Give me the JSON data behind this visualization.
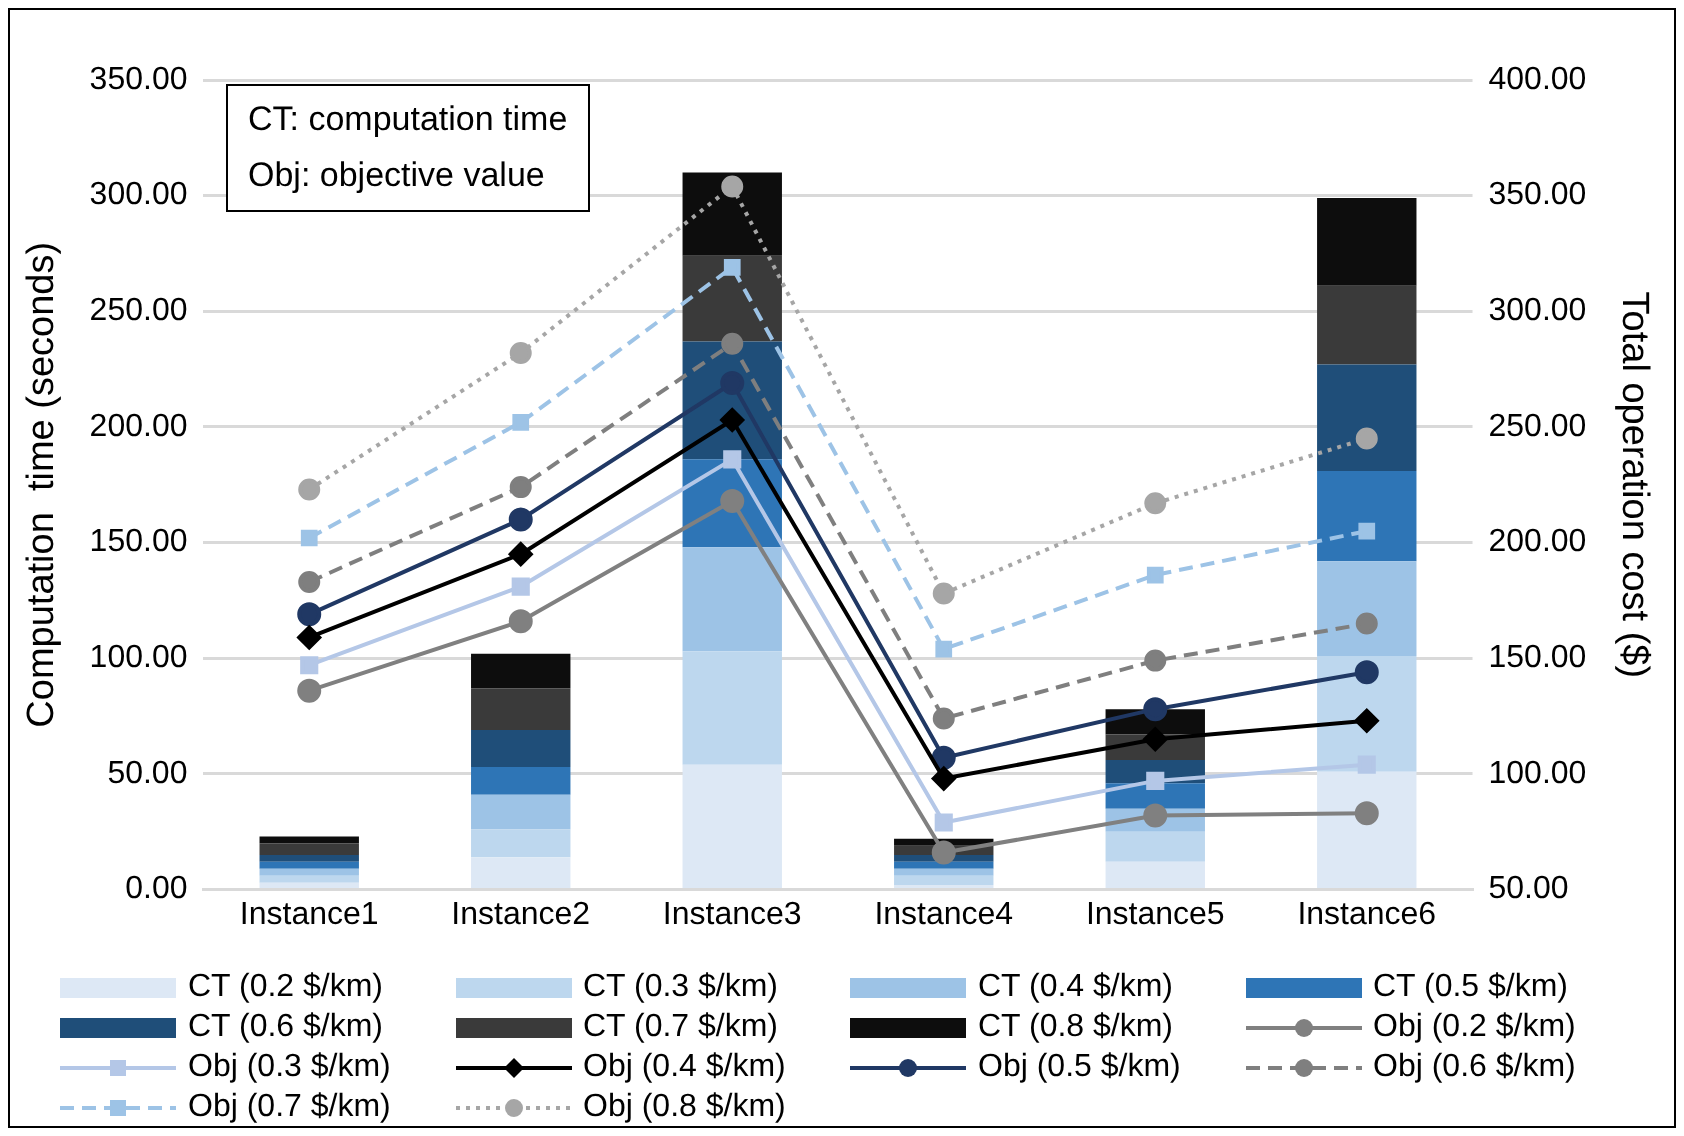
{
  "chart_data": {
    "type": "bar",
    "stacked": true,
    "categories": [
      "Instance1",
      "Instance2",
      "Instance3",
      "Instance4",
      "Instance5",
      "Instance6"
    ],
    "ylabel": "Computation  time (seconds)",
    "y2label": "Total operation cost ($)",
    "ylim": [
      0,
      350
    ],
    "yticks": [
      {
        "value": 0,
        "label": "0.00"
      },
      {
        "value": 50,
        "label": "50.00"
      },
      {
        "value": 100,
        "label": "100.00"
      },
      {
        "value": 150,
        "label": "150.00"
      },
      {
        "value": 200,
        "label": "200.00"
      },
      {
        "value": 250,
        "label": "250.00"
      },
      {
        "value": 300,
        "label": "300.00"
      },
      {
        "value": 350,
        "label": "350.00"
      }
    ],
    "y2lim": [
      50,
      400
    ],
    "y2ticks": [
      {
        "value": 50,
        "label": "50.00"
      },
      {
        "value": 100,
        "label": "100.00"
      },
      {
        "value": 150,
        "label": "150.00"
      },
      {
        "value": 200,
        "label": "200.00"
      },
      {
        "value": 250,
        "label": "250.00"
      },
      {
        "value": 300,
        "label": "300.00"
      },
      {
        "value": 350,
        "label": "350.00"
      },
      {
        "value": 400,
        "label": "400.00"
      }
    ],
    "grid": "y",
    "legend": "bottom",
    "annotations": [
      "CT: computation time",
      "Obj: objective value"
    ],
    "series": [
      {
        "name": "CT (0.2 $/km)",
        "color": "#dde8f5",
        "values": [
          3,
          14,
          54,
          2,
          12,
          51
        ]
      },
      {
        "name": "CT (0.3 $/km)",
        "color": "#bdd7ee",
        "values": [
          3,
          12,
          49,
          4,
          13,
          50
        ]
      },
      {
        "name": "CT (0.4 $/km)",
        "color": "#9dc3e6",
        "values": [
          3,
          15,
          45,
          3,
          10,
          41
        ]
      },
      {
        "name": "CT (0.5 $/km)",
        "color": "#2e75b6",
        "values": [
          3,
          12,
          38,
          3,
          11,
          39
        ]
      },
      {
        "name": "CT (0.6 $/km)",
        "color": "#1f4e79",
        "values": [
          3,
          16,
          51,
          3,
          10,
          46
        ]
      },
      {
        "name": "CT (0.7 $/km)",
        "color": "#3a3a3a",
        "values": [
          5,
          18,
          37,
          4,
          11,
          34
        ]
      },
      {
        "name": "CT (0.8 $/km)",
        "color": "#0d0d0d",
        "values": [
          3,
          15,
          36,
          3,
          11,
          38
        ]
      },
      {
        "name": "Obj (0.2 $/km)",
        "type": "line",
        "axis": "y2",
        "color": "#808080",
        "marker": "circle",
        "line_style": "solid",
        "values": [
          136,
          166,
          218,
          66,
          82,
          83
        ]
      },
      {
        "name": "Obj (0.3 $/km)",
        "type": "line",
        "axis": "y2",
        "color": "#b4c7e7",
        "marker": "square",
        "line_style": "solid",
        "values": [
          147,
          181,
          236,
          79,
          97,
          104
        ]
      },
      {
        "name": "Obj (0.4 $/km)",
        "type": "line",
        "axis": "y2",
        "color": "#000000",
        "marker": "diamond",
        "line_style": "solid",
        "values": [
          159,
          195,
          253,
          98,
          115,
          123
        ]
      },
      {
        "name": "Obj (0.5 $/km)",
        "type": "line",
        "axis": "y2",
        "color": "#203864",
        "marker": "circle",
        "line_style": "solid",
        "values": [
          169,
          210,
          269,
          107,
          128,
          144
        ]
      },
      {
        "name": "Obj (0.6 $/km)",
        "type": "line",
        "axis": "y2",
        "color": "#7f7f7f",
        "marker": "circle",
        "line_style": "dashed",
        "values": [
          183,
          224,
          286,
          124,
          149,
          165
        ]
      },
      {
        "name": "Obj (0.7 $/km)",
        "type": "line",
        "axis": "y2",
        "color": "#9dc3e6",
        "marker": "square",
        "line_style": "dashed",
        "values": [
          202,
          252,
          319,
          154,
          186,
          205
        ]
      },
      {
        "name": "Obj (0.8 $/km)",
        "type": "line",
        "axis": "y2",
        "color": "#a6a6a6",
        "marker": "circle",
        "line_style": "dotted",
        "values": [
          223,
          282,
          354,
          178,
          217,
          245
        ]
      }
    ]
  }
}
